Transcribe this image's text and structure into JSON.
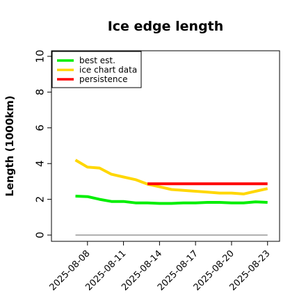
{
  "chart_data": {
    "type": "line",
    "title": "Ice edge length",
    "ylabel": "Length (1000km)",
    "xlabel": "",
    "ylim": [
      0,
      10
    ],
    "xlim": [
      "2025-08-05",
      "2025-08-24"
    ],
    "yticks": [
      "0",
      "2",
      "4",
      "6",
      "8",
      "10"
    ],
    "xticks": [
      "2025-08-08",
      "2025-08-11",
      "2025-08-14",
      "2025-08-17",
      "2025-08-20",
      "2025-08-23"
    ],
    "grid": false,
    "legend_position": "top-left",
    "baseline": {
      "y": 0,
      "x_start": "2025-08-07",
      "x_end": "2025-08-23",
      "color": "#808080"
    },
    "series": [
      {
        "name": "best est.",
        "color": "#00ee00",
        "x": [
          "2025-08-07",
          "2025-08-08",
          "2025-08-09",
          "2025-08-10",
          "2025-08-11",
          "2025-08-12",
          "2025-08-13",
          "2025-08-14",
          "2025-08-15",
          "2025-08-16",
          "2025-08-17",
          "2025-08-18",
          "2025-08-19",
          "2025-08-20",
          "2025-08-21",
          "2025-08-22",
          "2025-08-23"
        ],
        "y": [
          2.18,
          2.15,
          2.0,
          1.88,
          1.88,
          1.8,
          1.8,
          1.77,
          1.77,
          1.8,
          1.8,
          1.83,
          1.83,
          1.8,
          1.8,
          1.86,
          1.83
        ]
      },
      {
        "name": "ice chart data",
        "color": "#ffd700",
        "x": [
          "2025-08-07",
          "2025-08-08",
          "2025-08-09",
          "2025-08-10",
          "2025-08-11",
          "2025-08-12",
          "2025-08-13",
          "2025-08-14",
          "2025-08-15",
          "2025-08-16",
          "2025-08-17",
          "2025-08-18",
          "2025-08-19",
          "2025-08-20",
          "2025-08-21",
          "2025-08-22",
          "2025-08-23"
        ],
        "y": [
          4.2,
          3.8,
          3.75,
          3.4,
          3.25,
          3.1,
          2.85,
          2.7,
          2.55,
          2.5,
          2.45,
          2.4,
          2.35,
          2.35,
          2.3,
          2.45,
          2.6
        ]
      },
      {
        "name": "persistence",
        "color": "#ff0000",
        "x": [
          "2025-08-13",
          "2025-08-23"
        ],
        "y": [
          2.87,
          2.87
        ]
      }
    ]
  }
}
